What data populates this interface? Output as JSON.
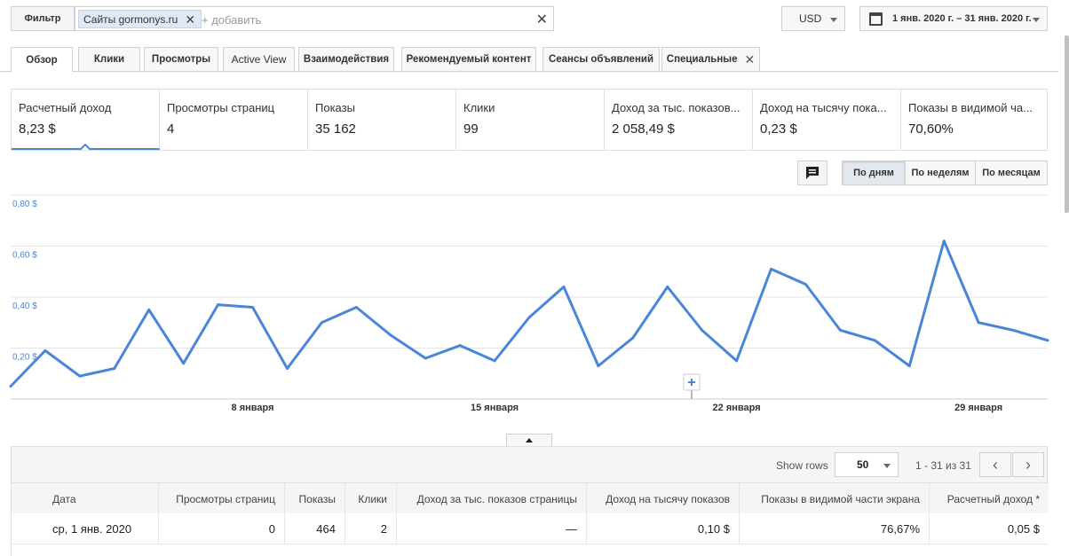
{
  "filter": {
    "button_label": "Фильтр",
    "chip_label": "Сайты gormonys.ru",
    "add_placeholder": "+ добавить"
  },
  "currency": "USD",
  "date_range": "1 янв. 2020 г. – 31 янв. 2020 г.",
  "tabs": [
    "Обзор",
    "Клики",
    "Просмотры",
    "Active View",
    "Взаимодействия",
    "Рекомендуемый контент",
    "Сеансы объявлений",
    "Специальные"
  ],
  "metrics": [
    {
      "label": "Расчетный доход",
      "value": "8,23 $"
    },
    {
      "label": "Просмотры страниц",
      "value": "4"
    },
    {
      "label": "Показы",
      "value": "35 162"
    },
    {
      "label": "Клики",
      "value": "99"
    },
    {
      "label": "Доход за тыс. показов...",
      "value": "2 058,49 $"
    },
    {
      "label": "Доход на тысячу пока...",
      "value": "0,23 $"
    },
    {
      "label": "Показы в видимой ча...",
      "value": "70,60%"
    }
  ],
  "granularity": {
    "day": "По дням",
    "week": "По неделям",
    "month": "По месяцам"
  },
  "colors": {
    "line": "#4a86d8",
    "accent": "#4a86d8"
  },
  "chart_data": {
    "type": "line",
    "x": [
      1,
      2,
      3,
      4,
      5,
      6,
      7,
      8,
      9,
      10,
      11,
      12,
      13,
      14,
      15,
      16,
      17,
      18,
      19,
      20,
      21,
      22,
      23,
      24,
      25,
      26,
      27,
      28,
      29,
      30,
      31
    ],
    "y_ticks": [
      "0,80 $",
      "0,60 $",
      "0,40 $",
      "0,20 $"
    ],
    "y_tick_values": [
      0.8,
      0.6,
      0.4,
      0.2
    ],
    "ylim": [
      0,
      0.8
    ],
    "x_ticks": [
      {
        "day": 8,
        "label": "8 января"
      },
      {
        "day": 15,
        "label": "15 января"
      },
      {
        "day": 22,
        "label": "22 января"
      },
      {
        "day": 29,
        "label": "29 января"
      }
    ],
    "series": [
      {
        "values": [
          0.05,
          0.19,
          0.09,
          0.12,
          0.35,
          0.14,
          0.37,
          0.36,
          0.12,
          0.3,
          0.36,
          0.25,
          0.16,
          0.21,
          0.15,
          0.32,
          0.44,
          0.13,
          0.24,
          0.44,
          0.27,
          0.15,
          0.51,
          0.45,
          0.27,
          0.23,
          0.13,
          0.62,
          0.3,
          0.27,
          0.23
        ]
      }
    ]
  },
  "table": {
    "show_rows_label": "Show rows",
    "rows_value": "50",
    "range_label": "1 - 31 из 31",
    "headers": [
      "Дата",
      "Просмотры страниц",
      "Показы",
      "Клики",
      "Доход за тыс. показов страницы",
      "Доход на тысячу показов",
      "Показы в видимой части экрана",
      "Расчетный доход *"
    ],
    "rows": [
      [
        "ср, 1 янв. 2020",
        "0",
        "464",
        "2",
        "—",
        "0,10 $",
        "76,67%",
        "0,05 $"
      ]
    ]
  }
}
